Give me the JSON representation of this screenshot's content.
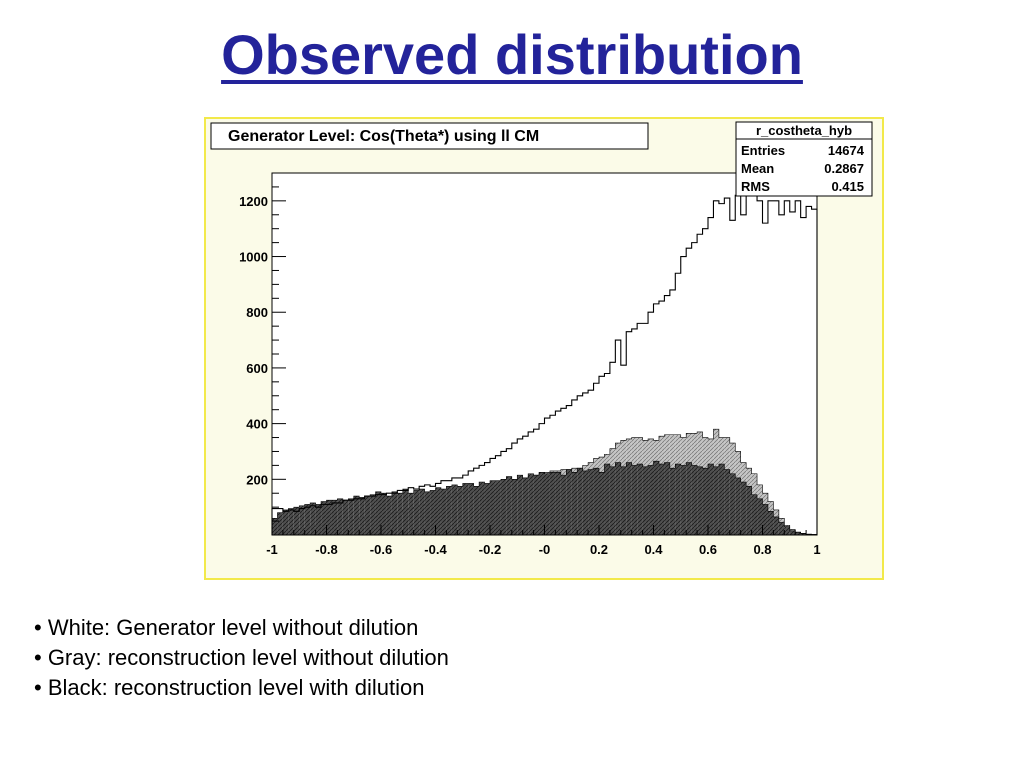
{
  "slide": {
    "title": "Observed distribution",
    "bullets": [
      "• White: Generator level without dilution",
      "• Gray: reconstruction level without dilution",
      "• Black: reconstruction level with dilution"
    ]
  },
  "colors": {
    "title": "#23239a",
    "frame_border": "#f2e94a",
    "frame_bg": "#fbfbe8",
    "gray_fill": "#c8c8c8",
    "black_fill": "#4a4a4a"
  },
  "chart_data": {
    "type": "histogram",
    "title": "Generator Level: Cos(Theta*) using ll CM",
    "xlabel": "",
    "ylabel": "",
    "xlim": [
      -1,
      1
    ],
    "ylim": [
      0,
      1300
    ],
    "x_ticks": [
      "-1",
      "-0.8",
      "-0.6",
      "-0.4",
      "-0.2",
      "-0",
      "0.2",
      "0.4",
      "0.6",
      "0.8",
      "1"
    ],
    "y_ticks": [
      "200",
      "400",
      "600",
      "800",
      "1000",
      "1200"
    ],
    "grid": false,
    "legend": "none",
    "stats_box": {
      "name": "r_costheta_hyb",
      "rows": [
        {
          "label": "Entries",
          "value": "14674"
        },
        {
          "label": "Mean",
          "value": "0.2867"
        },
        {
          "label": "RMS",
          "value": "0.415"
        }
      ]
    },
    "series": [
      {
        "name": "",
        "style": "white",
        "values": [
          95,
          95,
          85,
          90,
          85,
          95,
          100,
          105,
          100,
          110,
          110,
          115,
          115,
          125,
          125,
          130,
          130,
          140,
          140,
          145,
          145,
          150,
          150,
          160,
          160,
          170,
          165,
          175,
          180,
          175,
          185,
          195,
          195,
          205,
          205,
          215,
          230,
          240,
          250,
          260,
          275,
          285,
          300,
          310,
          330,
          345,
          355,
          370,
          380,
          400,
          420,
          430,
          445,
          455,
          465,
          485,
          500,
          510,
          520,
          545,
          570,
          580,
          620,
          700,
          610,
          730,
          740,
          760,
          760,
          800,
          830,
          840,
          860,
          880,
          940,
          1000,
          1030,
          1050,
          1080,
          1100,
          1140,
          1200,
          1190,
          1210,
          1130,
          1220,
          1150,
          1280,
          1300,
          1200,
          1120,
          1200,
          1200,
          1150,
          1200,
          1160,
          1200,
          1140,
          1180,
          1170
        ]
      },
      {
        "name": "",
        "style": "gray",
        "values": [
          8,
          10,
          12,
          15,
          18,
          22,
          25,
          30,
          32,
          35,
          38,
          42,
          45,
          48,
          52,
          55,
          58,
          62,
          65,
          68,
          72,
          75,
          80,
          82,
          90,
          95,
          100,
          105,
          110,
          115,
          120,
          128,
          135,
          140,
          150,
          155,
          160,
          165,
          168,
          170,
          175,
          180,
          185,
          190,
          195,
          200,
          205,
          210,
          215,
          220,
          225,
          230,
          230,
          235,
          235,
          240,
          240,
          250,
          260,
          275,
          280,
          290,
          310,
          330,
          340,
          345,
          350,
          350,
          340,
          345,
          340,
          355,
          360,
          360,
          360,
          350,
          365,
          365,
          370,
          350,
          345,
          380,
          350,
          350,
          330,
          300,
          260,
          240,
          220,
          180,
          150,
          120,
          90,
          60,
          35,
          20,
          10,
          6,
          3,
          2
        ]
      },
      {
        "name": "",
        "style": "black",
        "values": [
          60,
          80,
          90,
          95,
          100,
          105,
          110,
          115,
          110,
          120,
          125,
          125,
          130,
          125,
          130,
          140,
          135,
          140,
          145,
          155,
          150,
          140,
          155,
          150,
          165,
          150,
          160,
          165,
          155,
          160,
          170,
          165,
          175,
          180,
          175,
          185,
          185,
          175,
          190,
          185,
          195,
          195,
          200,
          210,
          200,
          215,
          205,
          220,
          215,
          225,
          220,
          225,
          225,
          215,
          235,
          225,
          240,
          230,
          235,
          240,
          225,
          255,
          245,
          260,
          245,
          260,
          250,
          255,
          245,
          250,
          265,
          255,
          260,
          240,
          255,
          250,
          260,
          250,
          245,
          240,
          255,
          245,
          255,
          235,
          220,
          205,
          190,
          175,
          145,
          130,
          110,
          85,
          65,
          45,
          30,
          15,
          10,
          5,
          3,
          2
        ]
      }
    ]
  }
}
